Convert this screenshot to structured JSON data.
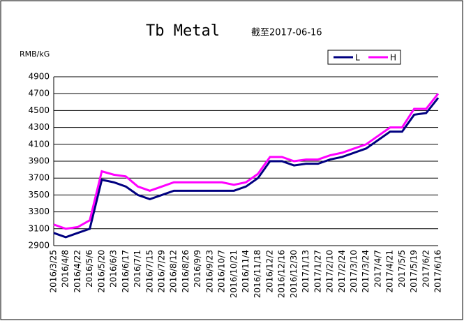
{
  "chart_data": {
    "type": "line",
    "title": "Tb Metal",
    "subtitle": "截至2017-06-16",
    "y_label": "RMB/kG",
    "categories": [
      "2016/3/25",
      "2016/4/8",
      "2016/4/22",
      "2016/5/6",
      "2016/5/20",
      "2016/6/3",
      "2016/6/17",
      "2016/7/1",
      "2016/7/15",
      "2016/7/29",
      "2016/8/12",
      "2016/8/26",
      "2016/9/9",
      "2016/9/23",
      "2016/10/7",
      "2016/10/21",
      "2016/11/4",
      "2016/11/18",
      "2016/12/2",
      "2016/12/16",
      "2016/12/30",
      "2017/1/13",
      "2017/1/27",
      "2017/2/10",
      "2017/2/24",
      "2017/3/10",
      "2017/3/24",
      "2017/4/7",
      "2017/4/21",
      "2017/5/5",
      "2017/5/19",
      "2017/6/2",
      "2017/6/16"
    ],
    "series": [
      {
        "name": "L",
        "color": "#000080",
        "values": [
          3050,
          3000,
          3050,
          3100,
          3680,
          3650,
          3600,
          3500,
          3450,
          3500,
          3550,
          3550,
          3550,
          3550,
          3550,
          3550,
          3600,
          3700,
          3900,
          3900,
          3850,
          3870,
          3870,
          3920,
          3950,
          4000,
          4050,
          4150,
          4250,
          4250,
          4450,
          4470,
          4650
        ]
      },
      {
        "name": "H",
        "color": "#ff00ff",
        "values": [
          3150,
          3100,
          3120,
          3200,
          3780,
          3740,
          3720,
          3600,
          3550,
          3600,
          3650,
          3650,
          3650,
          3650,
          3650,
          3620,
          3650,
          3750,
          3950,
          3950,
          3900,
          3920,
          3920,
          3970,
          4000,
          4050,
          4100,
          4200,
          4300,
          4300,
          4520,
          4520,
          4700
        ]
      }
    ],
    "ylim": [
      2900,
      4900
    ],
    "yticks": [
      2900,
      3100,
      3300,
      3500,
      3700,
      3900,
      4100,
      4300,
      4500,
      4700,
      4900
    ],
    "grid": true,
    "legend": "top-right"
  }
}
